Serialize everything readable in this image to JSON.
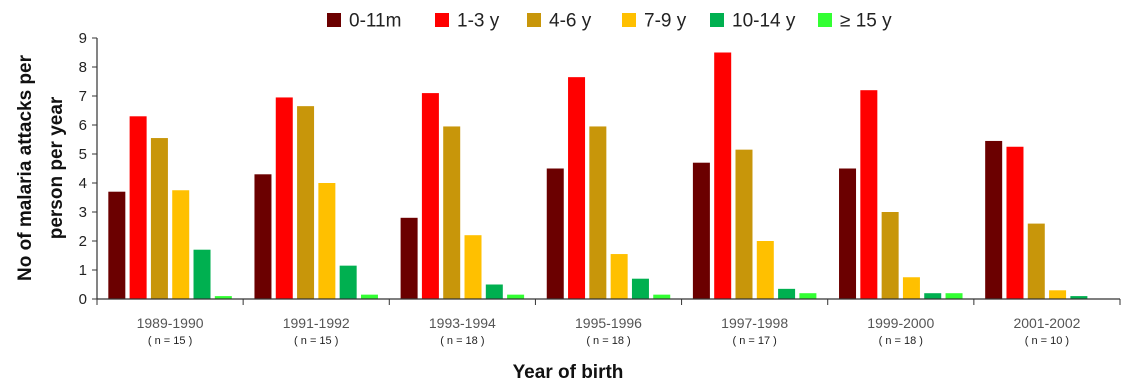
{
  "chart_data": {
    "type": "bar",
    "xlabel": "Year of birth",
    "ylabel_lines": [
      "No of malaria attacks per",
      "person per year"
    ],
    "ylim": [
      0,
      9
    ],
    "yticks": [
      "0",
      "1",
      "2",
      "3",
      "4",
      "5",
      "6",
      "7",
      "8",
      "9"
    ],
    "legend_position": "top",
    "grid": false,
    "categories": [
      "1989-1990",
      "1991-1992",
      "1993-1994",
      "1995-1996",
      "1997-1998",
      "1999-2000",
      "2001-2002"
    ],
    "category_n": [
      "( n = 15 )",
      "( n = 15 )",
      "( n = 18 )",
      "( n = 18 )",
      "( n = 17 )",
      "( n = 18 )",
      "( n = 10 )"
    ],
    "series": [
      {
        "name": "0-11m",
        "color": "#6b0000",
        "values": [
          3.7,
          4.3,
          2.8,
          4.5,
          4.7,
          4.5,
          5.45
        ]
      },
      {
        "name": "1-3 y",
        "color": "#ff0000",
        "values": [
          6.3,
          6.95,
          7.1,
          7.65,
          8.5,
          7.2,
          5.25
        ]
      },
      {
        "name": "4-6 y",
        "color": "#c8960a",
        "values": [
          5.55,
          6.65,
          5.95,
          5.95,
          5.15,
          3.0,
          2.6
        ]
      },
      {
        "name": "7-9 y",
        "color": "#ffc000",
        "values": [
          3.75,
          4.0,
          2.2,
          1.55,
          2.0,
          0.75,
          0.3
        ]
      },
      {
        "name": "10-14 y",
        "color": "#00b050",
        "values": [
          1.7,
          1.15,
          0.5,
          0.7,
          0.35,
          0.2,
          0.1
        ]
      },
      {
        "name": "≥ 15 y",
        "color": "#33ff33",
        "values": [
          0.1,
          0.15,
          0.15,
          0.15,
          0.2,
          0.2,
          0.0
        ]
      }
    ]
  }
}
